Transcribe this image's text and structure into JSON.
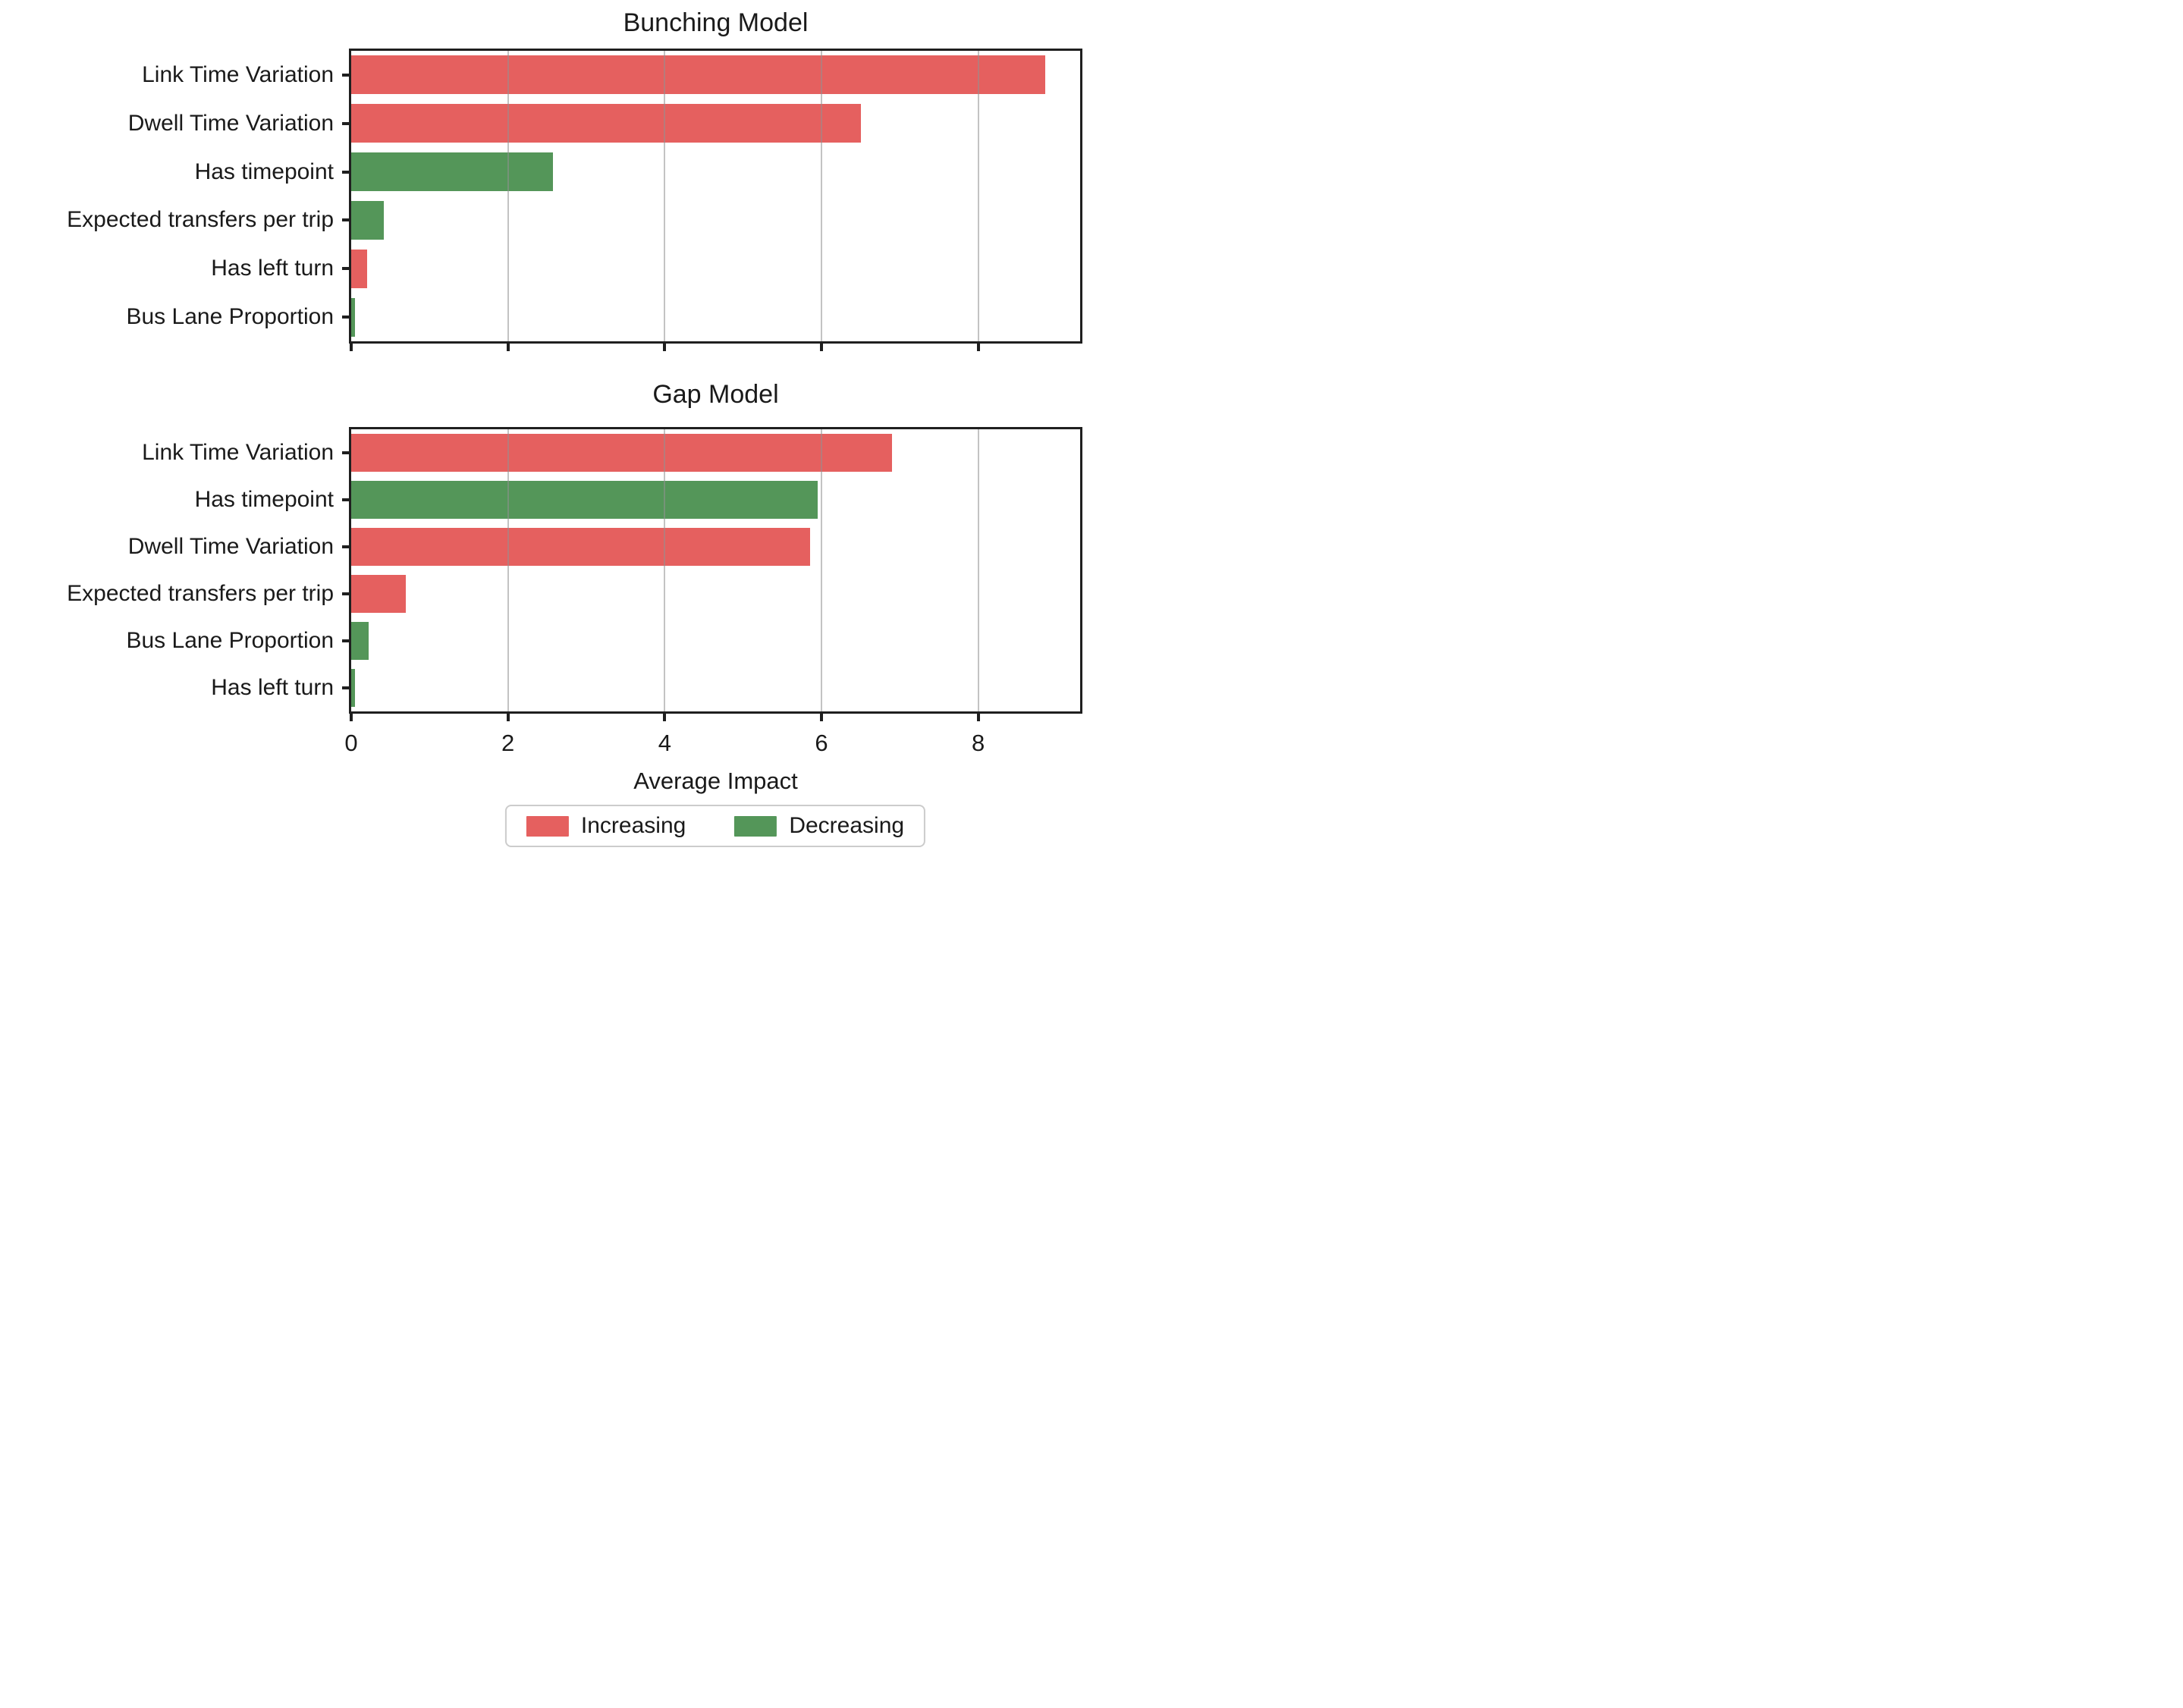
{
  "figure": {
    "background": "#ffffff",
    "axis_color": "#1f1f1f",
    "grid_color": "rgba(145,145,145,0.55)"
  },
  "colors": {
    "increasing": "#e5605f",
    "decreasing": "#549659"
  },
  "x_axis": {
    "label": "Average Impact",
    "ticks": [
      0,
      2,
      4,
      6,
      8
    ],
    "max": 9.3
  },
  "legend": {
    "items": [
      {
        "label": "Increasing",
        "color_key": "increasing"
      },
      {
        "label": "Decreasing",
        "color_key": "decreasing"
      }
    ]
  },
  "chart_data": [
    {
      "type": "bar",
      "orientation": "horizontal",
      "title": "Bunching Model",
      "categories": [
        "Link Time Variation",
        "Dwell Time Variation",
        "Has timepoint",
        "Expected transfers per trip",
        "Has left turn",
        "Bus Lane Proportion"
      ],
      "values": [
        8.85,
        6.5,
        2.57,
        0.42,
        0.2,
        0.05
      ],
      "directions": [
        "increasing",
        "increasing",
        "decreasing",
        "decreasing",
        "increasing",
        "decreasing"
      ],
      "xlabel": "Average Impact",
      "xlim": [
        0,
        9.3
      ],
      "grid": "x",
      "x_tick_labels_shown": false
    },
    {
      "type": "bar",
      "orientation": "horizontal",
      "title": "Gap Model",
      "categories": [
        "Link Time Variation",
        "Has timepoint",
        "Dwell Time Variation",
        "Expected transfers per trip",
        "Bus Lane Proportion",
        "Has left turn"
      ],
      "values": [
        6.9,
        5.95,
        5.85,
        0.7,
        0.22,
        0.05
      ],
      "directions": [
        "increasing",
        "decreasing",
        "increasing",
        "increasing",
        "decreasing",
        "decreasing"
      ],
      "xlabel": "Average Impact",
      "xlim": [
        0,
        9.3
      ],
      "grid": "x",
      "x_tick_labels_shown": true
    }
  ]
}
